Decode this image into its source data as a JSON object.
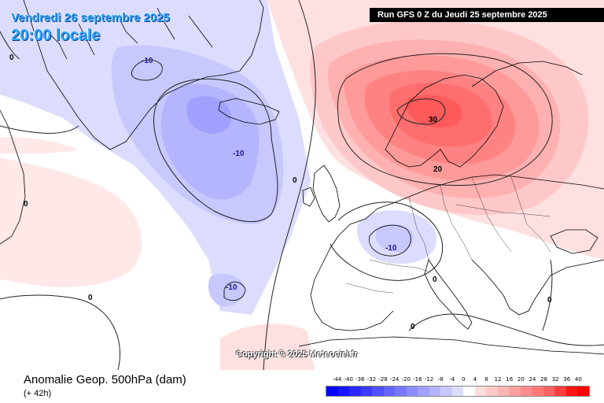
{
  "header": {
    "date": "Vendredi 26 septembre 2025",
    "time": "20:00 locale",
    "run": "Run GFS 0 Z du Jeudi 25 septembre 2025"
  },
  "copyright": "Copyright © 2025 Meteociel.fr",
  "footer": {
    "title": "Anomalie Geop. 500hPa (dam)",
    "subtitle": "(+ 42h)"
  },
  "legend": {
    "labels": [
      "-44",
      "-40",
      "-36",
      "-32",
      "-28",
      "-24",
      "-20",
      "-16",
      "-12",
      "-8",
      "-4",
      "0",
      "4",
      "8",
      "12",
      "16",
      "20",
      "24",
      "28",
      "32",
      "36",
      "40"
    ],
    "colors": [
      "#0000ff",
      "#1414ff",
      "#2828ff",
      "#3c3cff",
      "#5050ff",
      "#6464ff",
      "#7878ff",
      "#8c8cff",
      "#a0a0ff",
      "#b4b4ff",
      "#c8c8ff",
      "#dcdcff",
      "#ffffff",
      "#ffdcdc",
      "#ffc8c8",
      "#ffb4b4",
      "#ffa0a0",
      "#ff8c8c",
      "#ff7878",
      "#ff6464",
      "#ff3c3c",
      "#ff1414",
      "#ff0000"
    ]
  },
  "contour_labels": [
    "-10",
    "-10",
    "-10",
    "-10",
    "30",
    "20",
    "0",
    "0",
    "0",
    "0",
    "0",
    "0",
    "0"
  ]
}
